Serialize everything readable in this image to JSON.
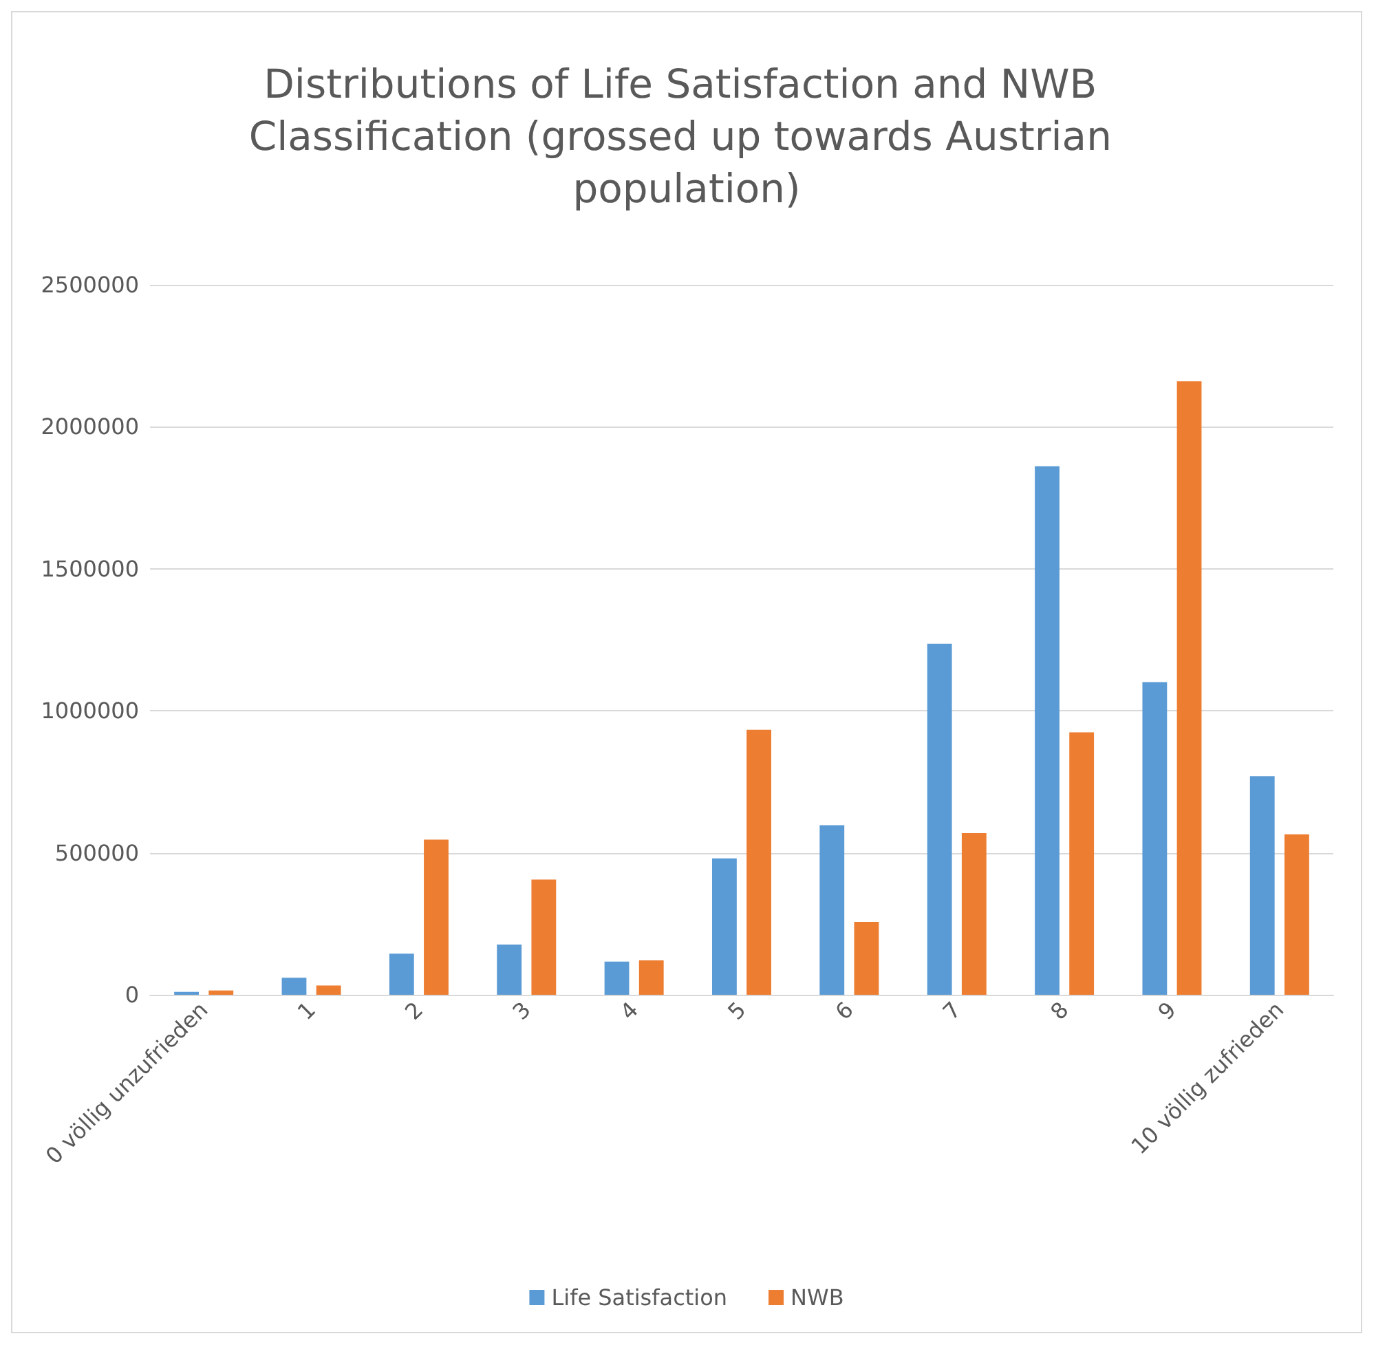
{
  "chart_data": {
    "type": "bar",
    "title": "Distributions of Life Satisfaction and NWB Classification (grossed up towards Austrian population)",
    "categories": [
      "0 völlig unzufrieden",
      "1",
      "2",
      "3",
      "4",
      "5",
      "6",
      "7",
      "8",
      "9",
      "10 völlig zufrieden"
    ],
    "series": [
      {
        "name": "Life Satisfaction",
        "color": "#5b9bd5",
        "values": [
          10000,
          60000,
          145000,
          177000,
          117000,
          480000,
          597000,
          1236000,
          1861000,
          1101000,
          770000
        ]
      },
      {
        "name": "NWB",
        "color": "#ed7d31",
        "values": [
          15000,
          33000,
          546000,
          406000,
          121000,
          933000,
          257000,
          569000,
          924000,
          2160000,
          565000
        ]
      }
    ],
    "ylim": [
      0,
      2500000
    ],
    "yticks": [
      0,
      500000,
      1000000,
      1500000,
      2000000,
      2500000
    ],
    "grid": "y",
    "legend": "bottom"
  }
}
